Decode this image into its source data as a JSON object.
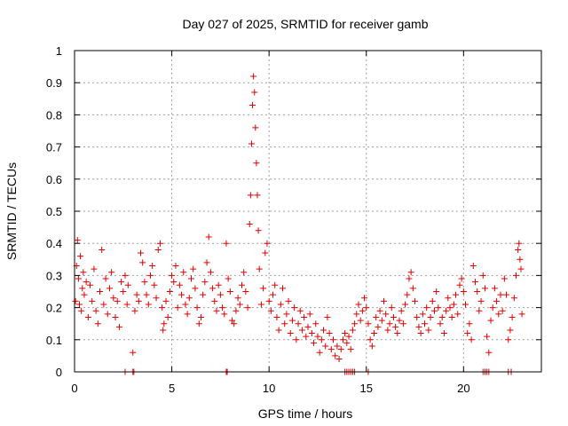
{
  "chart_data": {
    "type": "scatter",
    "title": "Day 027 of 2025, SRMTID for receiver gamb",
    "xlabel": "GPS time / hours",
    "ylabel": "SRMTID / TECUs",
    "xlim": [
      0,
      24
    ],
    "ylim": [
      0,
      1
    ],
    "x_ticks": [
      0,
      5,
      10,
      15,
      20
    ],
    "y_ticks": [
      0,
      0.1,
      0.2,
      0.3,
      0.4,
      0.5,
      0.6,
      0.7,
      0.8,
      0.9,
      1
    ],
    "x_tick_labels": [
      "0",
      "5",
      "10",
      "15",
      "20"
    ],
    "y_tick_labels": [
      "0",
      "0.1",
      "0.2",
      "0.3",
      "0.4",
      "0.5",
      "0.6",
      "0.7",
      "0.8",
      "0.9",
      "1"
    ],
    "grid": true,
    "marker": "plus",
    "color": "#e00000",
    "series": [
      {
        "name": "SRMTID",
        "points": [
          [
            0.05,
            0.22
          ],
          [
            0.1,
            0.33
          ],
          [
            0.15,
            0.41
          ],
          [
            0.2,
            0.29
          ],
          [
            0.25,
            0.21
          ],
          [
            0.3,
            0.36
          ],
          [
            0.35,
            0.19
          ],
          [
            0.4,
            0.26
          ],
          [
            0.45,
            0.31
          ],
          [
            0.5,
            0.24
          ],
          [
            0.6,
            0.28
          ],
          [
            0.7,
            0.17
          ],
          [
            0.8,
            0.27
          ],
          [
            0.9,
            0.22
          ],
          [
            1.0,
            0.32
          ],
          [
            1.1,
            0.19
          ],
          [
            1.2,
            0.15
          ],
          [
            1.3,
            0.25
          ],
          [
            1.4,
            0.38
          ],
          [
            1.5,
            0.21
          ],
          [
            1.6,
            0.29
          ],
          [
            1.7,
            0.18
          ],
          [
            1.8,
            0.26
          ],
          [
            1.9,
            0.31
          ],
          [
            2.0,
            0.23
          ],
          [
            2.1,
            0.17
          ],
          [
            2.2,
            0.22
          ],
          [
            2.3,
            0.14
          ],
          [
            2.4,
            0.28
          ],
          [
            2.5,
            0.25
          ],
          [
            2.6,
            0.3
          ],
          [
            2.7,
            0.21
          ],
          [
            2.75,
            0.27
          ],
          [
            3.0,
            0.06
          ],
          [
            3.1,
            0.19
          ],
          [
            3.2,
            0.24
          ],
          [
            3.3,
            0.22
          ],
          [
            3.4,
            0.37
          ],
          [
            3.5,
            0.34
          ],
          [
            3.6,
            0.28
          ],
          [
            3.7,
            0.24
          ],
          [
            3.8,
            0.21
          ],
          [
            3.9,
            0.3
          ],
          [
            4.0,
            0.33
          ],
          [
            4.1,
            0.27
          ],
          [
            4.2,
            0.23
          ],
          [
            4.3,
            0.38
          ],
          [
            4.4,
            0.4
          ],
          [
            4.5,
            0.2
          ],
          [
            4.55,
            0.13
          ],
          [
            4.6,
            0.15
          ],
          [
            4.7,
            0.22
          ],
          [
            4.8,
            0.17
          ],
          [
            4.9,
            0.25
          ],
          [
            5.0,
            0.3
          ],
          [
            5.1,
            0.28
          ],
          [
            5.2,
            0.33
          ],
          [
            5.3,
            0.2
          ],
          [
            5.4,
            0.27
          ],
          [
            5.5,
            0.24
          ],
          [
            5.6,
            0.31
          ],
          [
            5.7,
            0.21
          ],
          [
            5.8,
            0.18
          ],
          [
            5.9,
            0.23
          ],
          [
            6.0,
            0.29
          ],
          [
            6.1,
            0.32
          ],
          [
            6.2,
            0.26
          ],
          [
            6.3,
            0.2
          ],
          [
            6.4,
            0.15
          ],
          [
            6.5,
            0.17
          ],
          [
            6.6,
            0.24
          ],
          [
            6.7,
            0.28
          ],
          [
            6.8,
            0.34
          ],
          [
            6.9,
            0.42
          ],
          [
            7.0,
            0.31
          ],
          [
            7.1,
            0.26
          ],
          [
            7.2,
            0.22
          ],
          [
            7.3,
            0.19
          ],
          [
            7.4,
            0.27
          ],
          [
            7.5,
            0.24
          ],
          [
            7.6,
            0.2
          ],
          [
            7.7,
            0.18
          ],
          [
            7.8,
            0.4
          ],
          [
            7.9,
            0.29
          ],
          [
            8.0,
            0.25
          ],
          [
            8.1,
            0.16
          ],
          [
            8.2,
            0.15
          ],
          [
            8.3,
            0.19
          ],
          [
            8.4,
            0.23
          ],
          [
            8.5,
            0.21
          ],
          [
            8.6,
            0.27
          ],
          [
            8.7,
            0.31
          ],
          [
            8.8,
            0.25
          ],
          [
            8.9,
            0.2
          ],
          [
            9.0,
            0.46
          ],
          [
            9.05,
            0.55
          ],
          [
            9.1,
            0.71
          ],
          [
            9.15,
            0.83
          ],
          [
            9.2,
            0.92
          ],
          [
            9.25,
            0.87
          ],
          [
            9.3,
            0.76
          ],
          [
            9.35,
            0.65
          ],
          [
            9.4,
            0.55
          ],
          [
            9.45,
            0.44
          ],
          [
            9.5,
            0.32
          ],
          [
            9.6,
            0.21
          ],
          [
            9.7,
            0.26
          ],
          [
            9.8,
            0.37
          ],
          [
            9.9,
            0.4
          ],
          [
            10.0,
            0.22
          ],
          [
            10.1,
            0.19
          ],
          [
            10.2,
            0.24
          ],
          [
            10.3,
            0.27
          ],
          [
            10.4,
            0.17
          ],
          [
            10.5,
            0.13
          ],
          [
            10.6,
            0.21
          ],
          [
            10.7,
            0.26
          ],
          [
            10.8,
            0.15
          ],
          [
            10.9,
            0.18
          ],
          [
            11.0,
            0.22
          ],
          [
            11.1,
            0.12
          ],
          [
            11.2,
            0.16
          ],
          [
            11.3,
            0.2
          ],
          [
            11.4,
            0.1
          ],
          [
            11.5,
            0.15
          ],
          [
            11.6,
            0.19
          ],
          [
            11.7,
            0.13
          ],
          [
            11.8,
            0.17
          ],
          [
            11.9,
            0.11
          ],
          [
            12.0,
            0.14
          ],
          [
            12.1,
            0.18
          ],
          [
            12.2,
            0.12
          ],
          [
            12.3,
            0.09
          ],
          [
            12.4,
            0.15
          ],
          [
            12.5,
            0.11
          ],
          [
            12.6,
            0.06
          ],
          [
            12.7,
            0.1
          ],
          [
            12.8,
            0.13
          ],
          [
            12.9,
            0.08
          ],
          [
            13.0,
            0.17
          ],
          [
            13.1,
            0.12
          ],
          [
            13.2,
            0.07
          ],
          [
            13.3,
            0.1
          ],
          [
            13.4,
            0.05
          ],
          [
            13.5,
            0.08
          ],
          [
            13.6,
            0.04
          ],
          [
            13.7,
            0.07
          ],
          [
            13.8,
            0.1
          ],
          [
            13.9,
            0.12
          ],
          [
            14.0,
            0.09
          ],
          [
            14.1,
            0.11
          ],
          [
            14.2,
            0.07
          ],
          [
            14.3,
            0.13
          ],
          [
            14.4,
            0.15
          ],
          [
            14.5,
            0.18
          ],
          [
            14.6,
            0.21
          ],
          [
            14.7,
            0.16
          ],
          [
            14.8,
            0.19
          ],
          [
            14.9,
            0.23
          ],
          [
            15.0,
            0.2
          ],
          [
            15.1,
            0.15
          ],
          [
            15.2,
            0.1
          ],
          [
            15.3,
            0.08
          ],
          [
            15.4,
            0.12
          ],
          [
            15.5,
            0.17
          ],
          [
            15.6,
            0.14
          ],
          [
            15.7,
            0.19
          ],
          [
            15.8,
            0.16
          ],
          [
            15.9,
            0.22
          ],
          [
            16.0,
            0.18
          ],
          [
            16.1,
            0.13
          ],
          [
            16.2,
            0.15
          ],
          [
            16.3,
            0.2
          ],
          [
            16.4,
            0.17
          ],
          [
            16.5,
            0.14
          ],
          [
            16.6,
            0.12
          ],
          [
            16.7,
            0.16
          ],
          [
            16.8,
            0.19
          ],
          [
            16.9,
            0.15
          ],
          [
            17.0,
            0.21
          ],
          [
            17.1,
            0.24
          ],
          [
            17.2,
            0.29
          ],
          [
            17.3,
            0.31
          ],
          [
            17.4,
            0.26
          ],
          [
            17.5,
            0.22
          ],
          [
            17.6,
            0.17
          ],
          [
            17.7,
            0.14
          ],
          [
            17.8,
            0.12
          ],
          [
            17.9,
            0.18
          ],
          [
            18.0,
            0.15
          ],
          [
            18.1,
            0.2
          ],
          [
            18.2,
            0.13
          ],
          [
            18.3,
            0.17
          ],
          [
            18.4,
            0.22
          ],
          [
            18.5,
            0.19
          ],
          [
            18.6,
            0.25
          ],
          [
            18.7,
            0.2
          ],
          [
            18.8,
            0.15
          ],
          [
            18.9,
            0.17
          ],
          [
            19.0,
            0.12
          ],
          [
            19.1,
            0.19
          ],
          [
            19.2,
            0.23
          ],
          [
            19.3,
            0.2
          ],
          [
            19.4,
            0.17
          ],
          [
            19.5,
            0.21
          ],
          [
            19.6,
            0.24
          ],
          [
            19.7,
            0.18
          ],
          [
            19.8,
            0.27
          ],
          [
            19.9,
            0.29
          ],
          [
            20.0,
            0.25
          ],
          [
            20.1,
            0.21
          ],
          [
            20.2,
            0.12
          ],
          [
            20.3,
            0.15
          ],
          [
            20.4,
            0.1
          ],
          [
            20.5,
            0.33
          ],
          [
            20.6,
            0.28
          ],
          [
            20.7,
            0.25
          ],
          [
            20.8,
            0.19
          ],
          [
            20.9,
            0.22
          ],
          [
            21.0,
            0.3
          ],
          [
            21.1,
            0.26
          ],
          [
            21.2,
            0.11
          ],
          [
            21.3,
            0.06
          ],
          [
            21.4,
            0.16
          ],
          [
            21.5,
            0.2
          ],
          [
            21.6,
            0.26
          ],
          [
            21.7,
            0.22
          ],
          [
            21.8,
            0.18
          ],
          [
            21.9,
            0.24
          ],
          [
            22.0,
            0.19
          ],
          [
            22.1,
            0.29
          ],
          [
            22.2,
            0.24
          ],
          [
            22.3,
            0.1
          ],
          [
            22.4,
            0.13
          ],
          [
            22.5,
            0.17
          ],
          [
            22.6,
            0.23
          ],
          [
            22.7,
            0.3
          ],
          [
            22.8,
            0.38
          ],
          [
            22.85,
            0.4
          ],
          [
            22.9,
            0.35
          ],
          [
            22.95,
            0.32
          ],
          [
            23.0,
            0.18
          ],
          [
            2.6,
            0
          ],
          [
            3.0,
            0
          ],
          [
            3.05,
            0
          ],
          [
            7.8,
            0
          ],
          [
            7.85,
            0
          ],
          [
            13.9,
            0
          ],
          [
            14.0,
            0
          ],
          [
            14.1,
            0
          ],
          [
            14.2,
            0
          ],
          [
            14.3,
            0
          ],
          [
            14.4,
            0
          ],
          [
            15.1,
            0
          ],
          [
            21.0,
            0
          ],
          [
            21.1,
            0
          ],
          [
            21.2,
            0
          ],
          [
            21.3,
            0
          ],
          [
            22.3,
            0
          ],
          [
            22.45,
            0
          ]
        ]
      }
    ]
  }
}
